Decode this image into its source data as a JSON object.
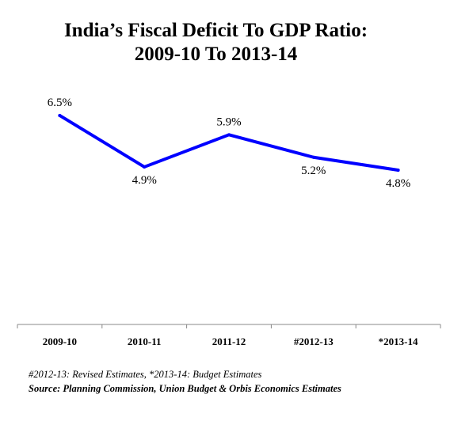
{
  "title_line1": "India’s Fiscal Deficit To GDP Ratio:",
  "title_line2": "2009-10 To 2013-14",
  "colors": {
    "line": "#0000ff",
    "axis": "#888888",
    "text": "#000000"
  },
  "chart_data": {
    "type": "line",
    "categories": [
      "2009-10",
      "2010-11",
      "2011-12",
      "#2012-13",
      "*2013-14"
    ],
    "series": [
      {
        "values": [
          6.5,
          4.9,
          5.9,
          5.2,
          4.8
        ]
      }
    ],
    "data_labels": [
      "6.5%",
      "4.9%",
      "5.9%",
      "5.2%",
      "4.8%"
    ],
    "ylim": [
      0,
      8
    ],
    "grid": false,
    "legend": "none"
  },
  "footnote": "#2012-13: Revised Estimates, *2013-14: Budget Estimates",
  "source": "Source: Planning Commission, Union Budget & Orbis Economics Estimates"
}
